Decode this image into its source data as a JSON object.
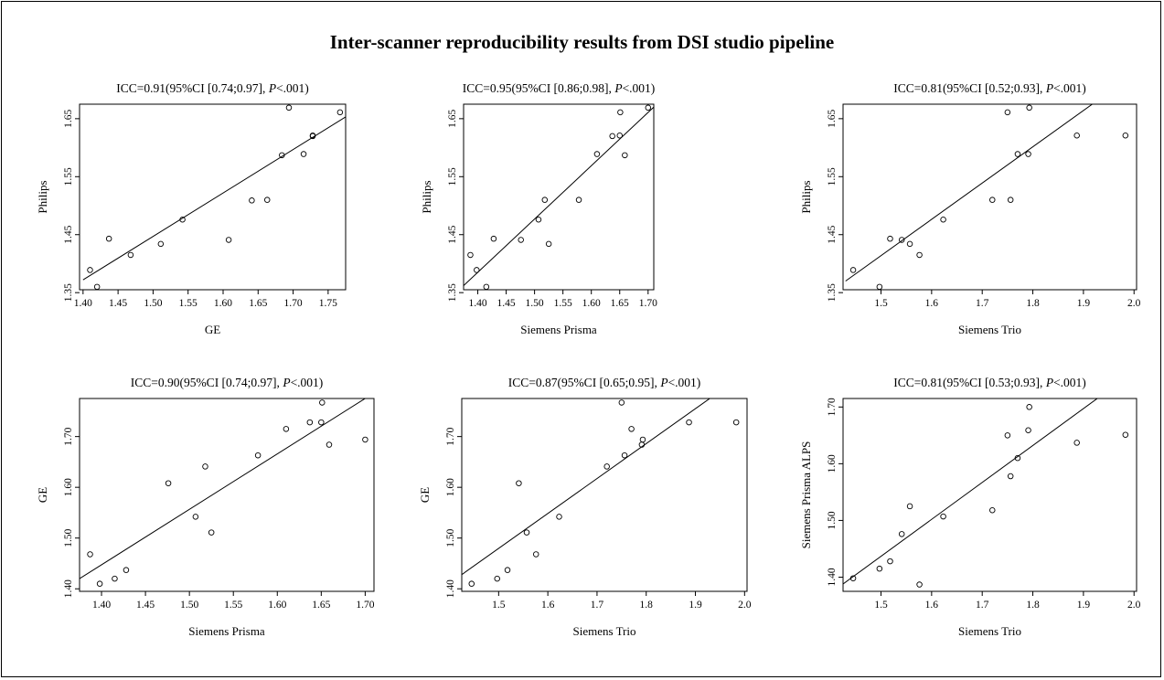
{
  "title": "Inter-scanner reproducibility results from DSI studio pipeline",
  "chart_data": [
    {
      "type": "scatter",
      "title_prefix": "ICC=0.91(95%CI [0.74;0.97], ",
      "title_p": "P",
      "title_suffix": "<.001)",
      "xlabel": "GE",
      "ylabel": "Philips",
      "xlim": [
        1.395,
        1.775
      ],
      "ylim": [
        1.355,
        1.675
      ],
      "xticks": [
        1.4,
        1.45,
        1.5,
        1.55,
        1.6,
        1.65,
        1.7,
        1.75
      ],
      "yticks": [
        1.35,
        1.45,
        1.55,
        1.65
      ],
      "x": [
        1.41,
        1.42,
        1.437,
        1.468,
        1.511,
        1.542,
        1.608,
        1.641,
        1.663,
        1.684,
        1.694,
        1.715,
        1.728,
        1.728,
        1.767
      ],
      "y": [
        1.389,
        1.36,
        1.443,
        1.415,
        1.434,
        1.476,
        1.441,
        1.509,
        1.51,
        1.587,
        1.669,
        1.589,
        1.621,
        1.62,
        1.661
      ],
      "fit": [
        [
          1.4,
          1.372
        ],
        [
          1.775,
          1.653
        ]
      ]
    },
    {
      "type": "scatter",
      "title_prefix": "ICC=0.95(95%CI [0.86;0.98], ",
      "title_p": "P",
      "title_suffix": "<.001)",
      "xlabel": "Siemens Prisma",
      "ylabel": "Philips",
      "xlim": [
        1.375,
        1.71
      ],
      "ylim": [
        1.355,
        1.675
      ],
      "xticks": [
        1.4,
        1.45,
        1.5,
        1.55,
        1.6,
        1.65,
        1.7
      ],
      "yticks": [
        1.35,
        1.45,
        1.55,
        1.65
      ],
      "x": [
        1.387,
        1.398,
        1.415,
        1.428,
        1.476,
        1.507,
        1.518,
        1.525,
        1.578,
        1.61,
        1.637,
        1.65,
        1.651,
        1.659,
        1.7
      ],
      "y": [
        1.415,
        1.389,
        1.36,
        1.443,
        1.441,
        1.476,
        1.51,
        1.434,
        1.51,
        1.589,
        1.62,
        1.621,
        1.661,
        1.587,
        1.669
      ],
      "fit": [
        [
          1.375,
          1.362
        ],
        [
          1.71,
          1.67
        ]
      ]
    },
    {
      "type": "scatter",
      "title_prefix": "ICC=0.81(95%CI [0.52;0.93], ",
      "title_p": "P",
      "title_suffix": "<.001)",
      "xlabel": "Siemens Trio",
      "ylabel": "Philips",
      "xlim": [
        1.425,
        2.005
      ],
      "ylim": [
        1.355,
        1.675
      ],
      "xticks": [
        1.5,
        1.6,
        1.7,
        1.8,
        1.9,
        2.0
      ],
      "yticks": [
        1.35,
        1.45,
        1.55,
        1.65
      ],
      "x": [
        1.445,
        1.497,
        1.518,
        1.541,
        1.557,
        1.576,
        1.623,
        1.72,
        1.75,
        1.756,
        1.77,
        1.791,
        1.793,
        1.887,
        1.983
      ],
      "y": [
        1.389,
        1.36,
        1.443,
        1.441,
        1.434,
        1.415,
        1.476,
        1.51,
        1.661,
        1.51,
        1.589,
        1.589,
        1.669,
        1.621,
        1.621
      ],
      "fit": [
        [
          1.43,
          1.37
        ],
        [
          1.935,
          1.686
        ]
      ]
    },
    {
      "type": "scatter",
      "title_prefix": "ICC=0.90(95%CI [0.74;0.97], ",
      "title_p": "P",
      "title_suffix": "<.001)",
      "xlabel": "Siemens Prisma",
      "ylabel": "GE",
      "xlim": [
        1.375,
        1.71
      ],
      "ylim": [
        1.395,
        1.775
      ],
      "xticks": [
        1.4,
        1.45,
        1.5,
        1.55,
        1.6,
        1.65,
        1.7
      ],
      "yticks": [
        1.4,
        1.5,
        1.6,
        1.7
      ],
      "x": [
        1.387,
        1.398,
        1.415,
        1.428,
        1.476,
        1.507,
        1.518,
        1.525,
        1.578,
        1.61,
        1.637,
        1.65,
        1.651,
        1.659,
        1.7
      ],
      "y": [
        1.468,
        1.41,
        1.42,
        1.437,
        1.608,
        1.542,
        1.641,
        1.511,
        1.663,
        1.715,
        1.728,
        1.728,
        1.767,
        1.684,
        1.694
      ],
      "fit": [
        [
          1.375,
          1.42
        ],
        [
          1.71,
          1.786
        ]
      ]
    },
    {
      "type": "scatter",
      "title_prefix": "ICC=0.87(95%CI [0.65;0.95], ",
      "title_p": "P",
      "title_suffix": "<.001)",
      "xlabel": "Siemens Trio",
      "ylabel": "GE",
      "xlim": [
        1.425,
        2.005
      ],
      "ylim": [
        1.395,
        1.775
      ],
      "xticks": [
        1.5,
        1.6,
        1.7,
        1.8,
        1.9,
        2.0
      ],
      "yticks": [
        1.4,
        1.5,
        1.6,
        1.7
      ],
      "x": [
        1.445,
        1.497,
        1.518,
        1.541,
        1.557,
        1.576,
        1.623,
        1.72,
        1.75,
        1.756,
        1.77,
        1.791,
        1.793,
        1.887,
        1.983
      ],
      "y": [
        1.41,
        1.42,
        1.437,
        1.608,
        1.511,
        1.468,
        1.542,
        1.641,
        1.767,
        1.663,
        1.715,
        1.684,
        1.694,
        1.728,
        1.728
      ],
      "fit": [
        [
          1.425,
          1.428
        ],
        [
          1.935,
          1.779
        ]
      ]
    },
    {
      "type": "scatter",
      "title_prefix": "ICC=0.81(95%CI [0.53;0.93], ",
      "title_p": "P",
      "title_suffix": "<.001)",
      "xlabel": "Siemens Trio",
      "ylabel": "Siemens Prisma ALPS",
      "xlim": [
        1.425,
        2.005
      ],
      "ylim": [
        1.375,
        1.715
      ],
      "xticks": [
        1.5,
        1.6,
        1.7,
        1.8,
        1.9,
        2.0
      ],
      "yticks": [
        1.4,
        1.5,
        1.6,
        1.7
      ],
      "x": [
        1.445,
        1.497,
        1.518,
        1.541,
        1.557,
        1.576,
        1.623,
        1.72,
        1.75,
        1.756,
        1.77,
        1.791,
        1.793,
        1.887,
        1.983
      ],
      "y": [
        1.398,
        1.415,
        1.428,
        1.476,
        1.525,
        1.387,
        1.507,
        1.518,
        1.65,
        1.578,
        1.61,
        1.659,
        1.7,
        1.637,
        1.651
      ],
      "fit": [
        [
          1.425,
          1.388
        ],
        [
          1.935,
          1.72
        ]
      ]
    }
  ]
}
